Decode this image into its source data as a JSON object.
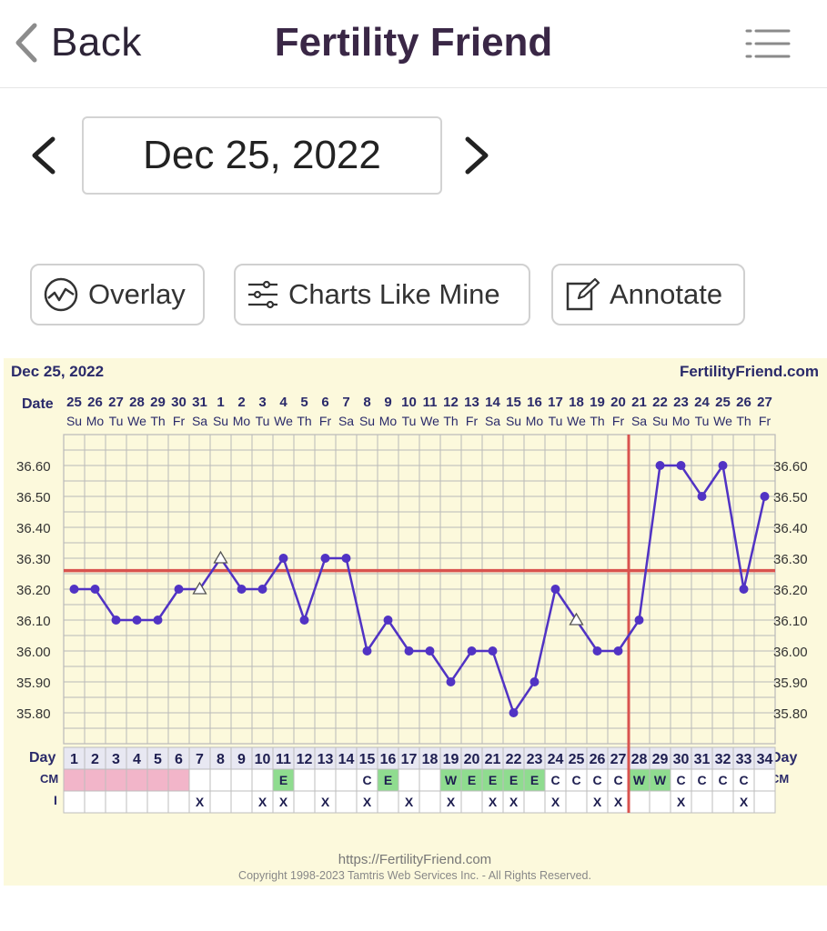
{
  "nav": {
    "back_label": "Back",
    "app_title": "Fertility Friend"
  },
  "date_nav": {
    "selected_date": "Dec 25, 2022"
  },
  "toolbar": {
    "overlay_label": "Overlay",
    "charts_like_mine_label": "Charts Like Mine",
    "annotate_label": "Annotate"
  },
  "colors": {
    "accent": "#3a2746",
    "series": "#5133c4",
    "coverline": "#d9534f",
    "grid": "#b9b9b9",
    "chart_bg": "#fcf9dc",
    "cm_green": "#8fdc8f",
    "pink": "#f2b5c9"
  },
  "chart_header": {
    "date": "Dec 25, 2022",
    "site": "FertilityFriend.com",
    "date_row_label": "Date",
    "day_row_label": "Day",
    "cm_row_label": "CM",
    "i_row_label": "I"
  },
  "footer": {
    "url": "https://FertilityFriend.com",
    "copyright": "Copyright 1998-2023 Tamtris Web Services Inc. - All Rights Reserved."
  },
  "chart_data": {
    "type": "line",
    "y_ticks": [
      "36.60",
      "36.50",
      "36.40",
      "36.30",
      "36.20",
      "36.10",
      "36.00",
      "35.90",
      "35.80"
    ],
    "ylim": [
      35.7,
      36.7
    ],
    "dates": [
      "25",
      "26",
      "27",
      "28",
      "29",
      "30",
      "31",
      "1",
      "2",
      "3",
      "4",
      "5",
      "6",
      "7",
      "8",
      "9",
      "10",
      "11",
      "12",
      "13",
      "14",
      "15",
      "16",
      "17",
      "18",
      "19",
      "20",
      "21",
      "22",
      "23",
      "24",
      "25",
      "26",
      "27"
    ],
    "weekdays": [
      "Su",
      "Mo",
      "Tu",
      "We",
      "Th",
      "Fr",
      "Sa",
      "Su",
      "Mo",
      "Tu",
      "We",
      "Th",
      "Fr",
      "Sa",
      "Su",
      "Mo",
      "Tu",
      "We",
      "Th",
      "Fr",
      "Sa",
      "Su",
      "Mo",
      "Tu",
      "We",
      "Th",
      "Fr",
      "Sa",
      "Su",
      "Mo",
      "Tu",
      "We",
      "Th",
      "Fr"
    ],
    "days": [
      "1",
      "2",
      "3",
      "4",
      "5",
      "6",
      "7",
      "8",
      "9",
      "10",
      "11",
      "12",
      "13",
      "14",
      "15",
      "16",
      "17",
      "18",
      "19",
      "20",
      "21",
      "22",
      "23",
      "24",
      "25",
      "26",
      "27",
      "28",
      "29",
      "30",
      "31",
      "32",
      "33",
      "34"
    ],
    "temperatures": [
      36.2,
      36.2,
      36.1,
      36.1,
      36.1,
      36.2,
      36.2,
      36.3,
      36.2,
      36.2,
      36.3,
      36.1,
      36.3,
      36.3,
      36.0,
      36.1,
      36.0,
      36.0,
      35.9,
      36.0,
      36.0,
      35.8,
      35.9,
      36.2,
      36.1,
      36.0,
      36.0,
      36.1,
      36.6,
      36.6,
      36.5,
      36.6,
      36.2,
      36.5
    ],
    "open_markers": [
      7,
      8,
      25
    ],
    "coverline": 36.26,
    "ovulation_day": 28,
    "cm": [
      "",
      "",
      "",
      "",
      "",
      "",
      "",
      "",
      "",
      "",
      "E",
      "",
      "",
      "",
      "C",
      "E",
      "",
      "",
      "W",
      "E",
      "E",
      "E",
      "E",
      "C",
      "C",
      "C",
      "C",
      "W",
      "W",
      "C",
      "C",
      "C",
      "C",
      ""
    ],
    "cm_highlight": [
      11,
      16,
      19,
      20,
      21,
      22,
      23,
      28,
      29
    ],
    "pink_days": [
      1,
      2,
      3,
      4,
      5,
      6
    ],
    "intercourse": [
      "",
      "",
      "",
      "",
      "",
      "",
      "X",
      "",
      "",
      "X",
      "X",
      "",
      "X",
      "",
      "X",
      "",
      "X",
      "",
      "X",
      "",
      "X",
      "X",
      "",
      "X",
      "",
      "X",
      "X",
      "",
      "",
      "X",
      "",
      "",
      "X",
      ""
    ]
  }
}
